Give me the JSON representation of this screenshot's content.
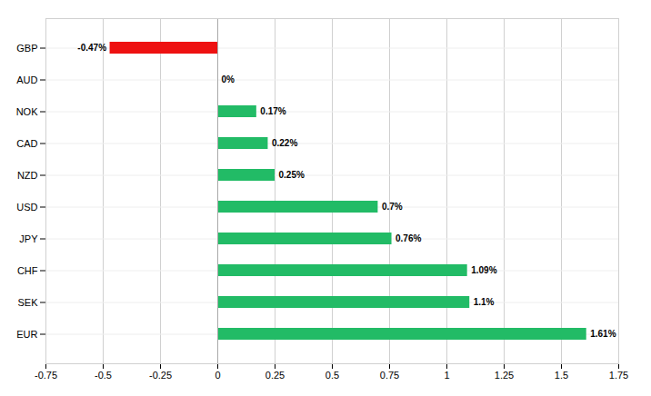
{
  "chart_data": {
    "type": "bar",
    "orientation": "horizontal",
    "categories": [
      "GBP",
      "AUD",
      "NOK",
      "CAD",
      "NZD",
      "USD",
      "JPY",
      "CHF",
      "SEK",
      "EUR"
    ],
    "values": [
      -0.47,
      0.0,
      0.17,
      0.22,
      0.25,
      0.7,
      0.76,
      1.09,
      1.1,
      1.61
    ],
    "value_labels": [
      "-0.47%",
      "0%",
      "0.17%",
      "0.22%",
      "0.25%",
      "0.7%",
      "0.76%",
      "1.09%",
      "1.1%",
      "1.61%"
    ],
    "colors": [
      "#ee1111",
      "#22bb66",
      "#22bb66",
      "#22bb66",
      "#22bb66",
      "#22bb66",
      "#22bb66",
      "#22bb66",
      "#22bb66",
      "#22bb66"
    ],
    "xlim": [
      -0.75,
      1.75
    ],
    "xticks": [
      -0.75,
      -0.5,
      -0.25,
      0,
      0.25,
      0.5,
      0.75,
      1,
      1.25,
      1.5,
      1.75
    ],
    "grid": true,
    "data_labels": true
  }
}
